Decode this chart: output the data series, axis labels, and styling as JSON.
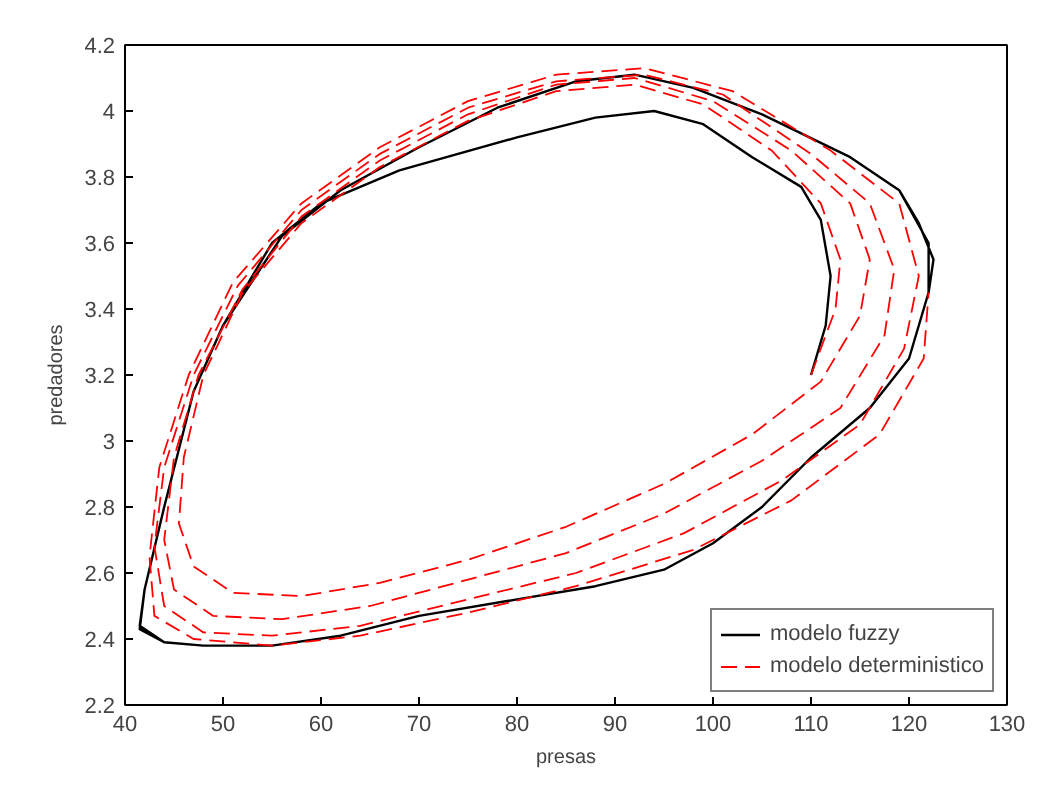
{
  "chart_data": {
    "type": "line",
    "xlabel": "presas",
    "ylabel": "predadores",
    "xlim": [
      40,
      130
    ],
    "ylim": [
      2.2,
      4.2
    ],
    "xticks": [
      40,
      50,
      60,
      70,
      80,
      90,
      100,
      110,
      120,
      130
    ],
    "yticks": [
      2.2,
      2.4,
      2.6,
      2.8,
      3,
      3.2,
      3.4,
      3.6,
      3.8,
      4,
      4.2
    ],
    "grid": false,
    "legend": "bottom right",
    "series": [
      {
        "name": "modelo fuzzy",
        "color": "#000000",
        "line_style": "solid",
        "x": [
          110,
          111.5,
          112,
          111,
          109,
          104,
          99,
          94,
          88,
          80,
          68,
          60,
          55,
          50,
          47,
          44,
          42,
          41.5,
          44,
          48,
          55,
          62,
          70,
          80,
          88,
          95,
          100,
          105,
          110,
          116,
          120,
          122,
          122,
          119,
          114,
          105,
          98,
          92,
          86,
          78,
          70,
          62,
          56,
          50,
          47,
          44,
          42,
          41.5,
          44,
          48,
          55,
          62,
          70,
          80,
          88,
          95,
          100,
          105,
          110,
          116,
          120,
          122,
          122.5,
          121,
          119,
          114,
          105,
          98,
          92
        ],
        "values": [
          3.2,
          3.35,
          3.5,
          3.67,
          3.77,
          3.86,
          3.96,
          4.0,
          3.98,
          3.92,
          3.82,
          3.72,
          3.6,
          3.35,
          3.15,
          2.8,
          2.55,
          2.44,
          2.39,
          2.38,
          2.38,
          2.41,
          2.47,
          2.52,
          2.56,
          2.61,
          2.69,
          2.8,
          2.95,
          3.1,
          3.25,
          3.45,
          3.6,
          3.76,
          3.86,
          3.99,
          4.07,
          4.11,
          4.09,
          4.01,
          3.89,
          3.76,
          3.62,
          3.35,
          3.15,
          2.8,
          2.55,
          2.43,
          2.39,
          2.38,
          2.38,
          2.41,
          2.47,
          2.52,
          2.56,
          2.61,
          2.69,
          2.8,
          2.95,
          3.1,
          3.25,
          3.45,
          3.55,
          3.66,
          3.76,
          3.86,
          3.99,
          4.07,
          4.11
        ]
      },
      {
        "name": "modelo deterministico",
        "color": "#ff0000",
        "line_style": "dashed",
        "x": [
          110,
          112.5,
          113,
          111,
          106,
          99,
          92,
          84,
          75,
          66,
          58,
          52,
          48,
          46,
          45.5,
          47,
          51,
          58,
          66,
          75,
          85,
          95,
          104,
          111,
          115,
          116,
          114,
          108,
          100,
          92,
          84,
          75,
          66,
          58,
          52,
          47.5,
          45,
          44,
          45,
          49,
          56,
          65,
          75,
          85,
          95,
          105,
          113,
          117.5,
          118.5,
          116,
          110,
          101,
          93,
          84,
          75,
          66,
          58,
          51.5,
          47,
          44,
          43,
          44,
          48,
          55,
          64,
          75,
          86,
          97,
          107,
          115,
          119.5,
          121,
          119,
          112,
          102,
          93,
          84,
          75,
          66,
          58,
          51,
          46.5,
          43.5,
          42.5,
          43,
          47,
          55,
          64,
          75,
          86,
          98,
          108,
          117,
          121.5,
          122
        ],
        "values": [
          3.2,
          3.4,
          3.55,
          3.72,
          3.88,
          4.02,
          4.08,
          4.06,
          3.97,
          3.83,
          3.66,
          3.45,
          3.2,
          2.95,
          2.75,
          2.62,
          2.54,
          2.53,
          2.57,
          2.64,
          2.74,
          2.87,
          3.02,
          3.18,
          3.38,
          3.55,
          3.72,
          3.88,
          4.03,
          4.1,
          4.08,
          3.99,
          3.85,
          3.68,
          3.46,
          3.2,
          2.95,
          2.7,
          2.55,
          2.47,
          2.46,
          2.5,
          2.58,
          2.66,
          2.78,
          2.94,
          3.1,
          3.32,
          3.52,
          3.72,
          3.87,
          4.05,
          4.11,
          4.09,
          4.01,
          3.87,
          3.7,
          3.47,
          3.2,
          2.92,
          2.68,
          2.5,
          2.42,
          2.41,
          2.44,
          2.52,
          2.6,
          2.72,
          2.88,
          3.05,
          3.28,
          3.5,
          3.72,
          3.88,
          4.06,
          4.13,
          4.11,
          4.03,
          3.89,
          3.72,
          3.48,
          3.2,
          2.92,
          2.65,
          2.47,
          2.4,
          2.38,
          2.41,
          2.48,
          2.56,
          2.67,
          2.82,
          3.02,
          3.25,
          3.45
        ]
      }
    ]
  }
}
